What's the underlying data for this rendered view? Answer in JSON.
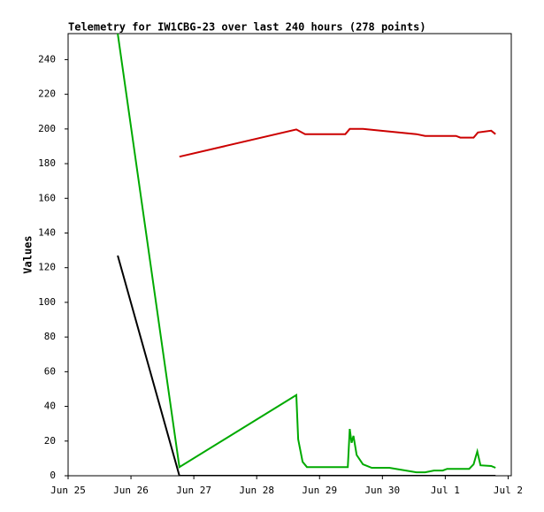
{
  "chart_data": {
    "type": "line",
    "title": "Telemetry for IW1CBG-23 over last 240 hours (278 points)",
    "y_label": "Values",
    "xlim": [
      0,
      7.05
    ],
    "xticks": [
      {
        "value": 0,
        "label": "Jun 25"
      },
      {
        "value": 1,
        "label": "Jun 26"
      },
      {
        "value": 2,
        "label": "Jun 27"
      },
      {
        "value": 3,
        "label": "Jun 28"
      },
      {
        "value": 4,
        "label": "Jun 29"
      },
      {
        "value": 5,
        "label": "Jun 30"
      },
      {
        "value": 6,
        "label": "Jul 1"
      },
      {
        "value": 7,
        "label": "Jul 2"
      }
    ],
    "ylim": [
      0,
      255
    ],
    "yticks": [
      0,
      20,
      40,
      60,
      80,
      100,
      120,
      140,
      160,
      180,
      200,
      220,
      240
    ],
    "grid": false,
    "series": [
      {
        "color": "#cc0000",
        "x": [
          1.77,
          3.63,
          3.77,
          4.41,
          4.48,
          4.69,
          4.97,
          5.54,
          5.68,
          6.17,
          6.24,
          6.45,
          6.52,
          6.73,
          6.8
        ],
        "values": [
          184,
          199.7,
          197,
          197,
          200,
          200,
          199,
          197,
          196,
          196,
          195,
          195,
          198,
          199,
          197
        ]
      },
      {
        "color": "#00aa00",
        "x": [
          0.79,
          1.77,
          3.63,
          3.66,
          3.73,
          3.8,
          4.45,
          4.48,
          4.51,
          4.54,
          4.59,
          4.69,
          4.83,
          5.11,
          5.54,
          5.68,
          5.82,
          5.96,
          6.03,
          6.38,
          6.45,
          6.51,
          6.56,
          6.73,
          6.8
        ],
        "values": [
          255,
          5,
          46.5,
          21,
          8,
          5,
          5,
          27,
          19,
          23,
          12,
          6.6,
          4.6,
          4.6,
          2,
          2,
          3,
          3,
          4,
          4,
          6.6,
          14,
          6,
          5.6,
          4.6
        ]
      },
      {
        "color": "#000000",
        "x": [
          0.79,
          1.77,
          6.8
        ],
        "values": [
          127,
          0,
          0
        ]
      }
    ]
  }
}
